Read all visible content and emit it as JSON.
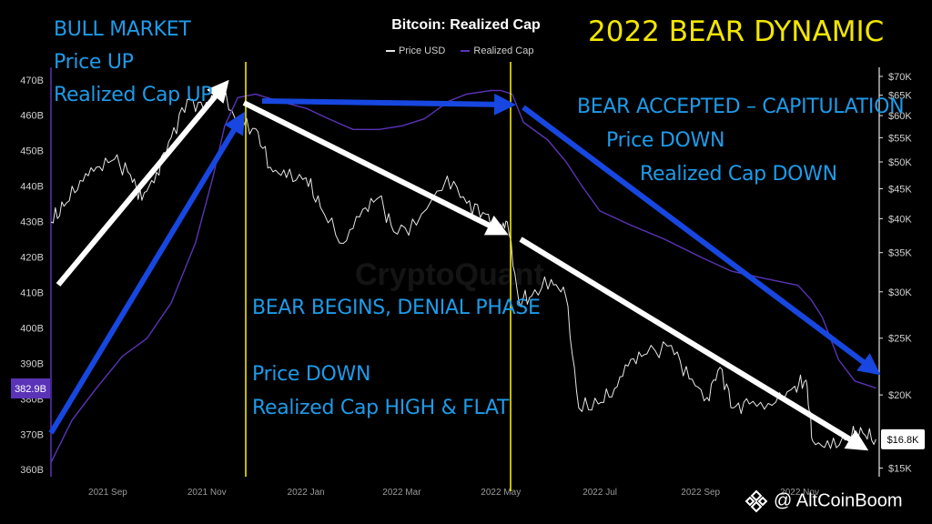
{
  "chart_data": {
    "type": "line",
    "title": "Bitcoin: Realized Cap",
    "legend": [
      "Price USD",
      "Realized Cap"
    ],
    "legend_placement": "top-center",
    "x_ticks": [
      "2021 Sep",
      "2021 Nov",
      "2022 Jan",
      "2022 Mar",
      "2022 May",
      "2022 Jul",
      "2022 Sep",
      "2022 Nov"
    ],
    "left_axis": {
      "label": "",
      "ticks": [
        "470B",
        "460B",
        "450B",
        "440B",
        "430B",
        "420B",
        "410B",
        "400B",
        "390B",
        "380B",
        "370B",
        "360B"
      ],
      "ylim": [
        358,
        472
      ],
      "unit": "B USD"
    },
    "right_axis": {
      "label": "",
      "scale": "log",
      "ticks": [
        "$70K",
        "$65K",
        "$60K",
        "$55K",
        "$50K",
        "$45K",
        "$40K",
        "$35K",
        "$30K",
        "$25K",
        "$20K",
        "$15K"
      ],
      "ylim": [
        14500,
        71000
      ]
    },
    "grid": false,
    "series": [
      {
        "name": "Price USD",
        "color": "#e6e6e6",
        "axis": "right",
        "x": [
          "2021-07-28",
          "2021-08-05",
          "2021-08-15",
          "2021-08-25",
          "2021-09-05",
          "2021-09-15",
          "2021-09-22",
          "2021-10-01",
          "2021-10-10",
          "2021-10-20",
          "2021-10-30",
          "2021-11-09",
          "2021-11-20",
          "2021-12-01",
          "2021-12-10",
          "2021-12-20",
          "2022-01-01",
          "2022-01-10",
          "2022-01-24",
          "2022-02-05",
          "2022-02-15",
          "2022-02-24",
          "2022-03-10",
          "2022-03-29",
          "2022-04-10",
          "2022-04-20",
          "2022-04-30",
          "2022-05-05",
          "2022-05-12",
          "2022-05-20",
          "2022-06-01",
          "2022-06-10",
          "2022-06-18",
          "2022-06-30",
          "2022-07-10",
          "2022-07-20",
          "2022-07-30",
          "2022-08-14",
          "2022-08-25",
          "2022-09-05",
          "2022-09-13",
          "2022-09-21",
          "2022-10-01",
          "2022-10-15",
          "2022-10-29",
          "2022-11-05",
          "2022-11-09",
          "2022-11-20",
          "2022-12-01",
          "2022-12-10",
          "2022-12-18"
        ],
        "values": [
          39500,
          42000,
          46500,
          49000,
          50500,
          47500,
          43000,
          48000,
          55000,
          64000,
          61500,
          67500,
          58000,
          57000,
          49000,
          47000,
          47000,
          41800,
          36300,
          41500,
          43500,
          38000,
          39000,
          47300,
          42500,
          41000,
          38500,
          39500,
          29000,
          29500,
          31500,
          29500,
          19000,
          19300,
          20500,
          23000,
          23500,
          24300,
          21300,
          19800,
          22300,
          19000,
          19300,
          19200,
          20700,
          21200,
          16700,
          16200,
          17000,
          17200,
          16800
        ]
      },
      {
        "name": "Realized Cap",
        "color": "#5b33b8",
        "axis": "left",
        "x": [
          "2021-07-28",
          "2021-08-10",
          "2021-08-25",
          "2021-09-10",
          "2021-09-25",
          "2021-10-10",
          "2021-10-25",
          "2021-11-05",
          "2021-11-12",
          "2021-11-20",
          "2021-12-01",
          "2021-12-15",
          "2022-01-01",
          "2022-01-15",
          "2022-01-30",
          "2022-02-15",
          "2022-03-01",
          "2022-03-15",
          "2022-03-30",
          "2022-04-10",
          "2022-04-25",
          "2022-05-01",
          "2022-05-08",
          "2022-05-15",
          "2022-05-30",
          "2022-06-10",
          "2022-06-20",
          "2022-07-01",
          "2022-07-20",
          "2022-08-10",
          "2022-09-01",
          "2022-09-20",
          "2022-10-10",
          "2022-10-31",
          "2022-11-08",
          "2022-11-15",
          "2022-11-25",
          "2022-12-05",
          "2022-12-18"
        ],
        "values": [
          362,
          374,
          383,
          392,
          397,
          407,
          424,
          443,
          457,
          465,
          466,
          464,
          462,
          459,
          456,
          456,
          457,
          459,
          464,
          466,
          467,
          467,
          466,
          458,
          453,
          447,
          440,
          433,
          429,
          425,
          420,
          416,
          414,
          412,
          408,
          403,
          391,
          385,
          383
        ]
      }
    ],
    "annotations": {
      "bull_market": [
        "BULL MARKET",
        "Price UP",
        "Realized Cap UP"
      ],
      "headline": "2022 BEAR DYNAMIC",
      "bear_accepted": [
        "BEAR ACCEPTED – CAPITULATION",
        "Price DOWN",
        "Realized Cap DOWN"
      ],
      "bear_begins": [
        "BEAR BEGINS, DENIAL PHASE",
        "Price DOWN",
        "Realized Cap HIGH & FLAT"
      ]
    },
    "current_values": {
      "realized_cap_label": "382.9B",
      "price_label": "$16.8K"
    },
    "watermark": "CryptoQuant",
    "credit": "@ AltCoinBoom"
  }
}
